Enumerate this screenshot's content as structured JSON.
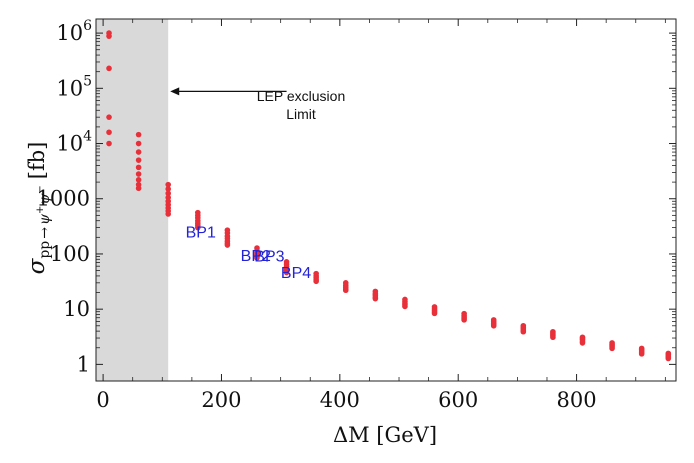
{
  "chart_data": {
    "type": "scatter",
    "title": "",
    "xlabel": "ΔM [GeV]",
    "ylabel": {
      "symbol": "σ",
      "subscript_pp": "pp",
      "subscript_arrow": "→",
      "subscript_psi1": "ψ",
      "sup_plus": "+",
      "subscript_psi2": "ψ",
      "sup_minus": "−",
      "unit": "[fb]"
    },
    "xlim": [
      -12,
      968
    ],
    "ylim": [
      0.5,
      1800000
    ],
    "yscale": "log",
    "x_ticks": [
      {
        "value": 0,
        "label": "0"
      },
      {
        "value": 200,
        "label": "200"
      },
      {
        "value": 400,
        "label": "400"
      },
      {
        "value": 600,
        "label": "600"
      },
      {
        "value": 800,
        "label": "800"
      }
    ],
    "y_ticks": [
      {
        "value": 1,
        "label": "1"
      },
      {
        "value": 10,
        "label": "10"
      },
      {
        "value": 100,
        "label": "100"
      },
      {
        "value": 1000,
        "label": "1000"
      },
      {
        "value": 10000,
        "base": "10",
        "exp": "4"
      },
      {
        "value": 100000,
        "base": "10",
        "exp": "5"
      },
      {
        "value": 1000000,
        "base": "10",
        "exp": "6"
      }
    ],
    "shaded_region": {
      "x_from": -12,
      "x_to": 110,
      "color": "#d9d9d9"
    },
    "annotation": {
      "line1": "LEP exclusion",
      "line2": "Limit",
      "arrow_from_x": 310,
      "arrow_to_x": 110,
      "arrow_y": 88000
    },
    "point_color": "#e8303a",
    "groups": [
      {
        "x": 10,
        "y": [
          1000000,
          880000,
          230000,
          30000,
          16000,
          10000
        ]
      },
      {
        "x": 60,
        "y": [
          14500,
          10000,
          7000,
          5000,
          3700,
          2800,
          2200,
          1800,
          1550
        ]
      },
      {
        "x": 110,
        "y": [
          1800,
          1500,
          1250,
          1050,
          900,
          780,
          680,
          600,
          530
        ]
      },
      {
        "x": 160,
        "y": [
          560,
          500,
          450,
          400,
          360,
          330,
          300
        ]
      },
      {
        "x": 210,
        "y": [
          270,
          240,
          210,
          190,
          170,
          155,
          145
        ]
      },
      {
        "x": 260,
        "y": [
          128,
          115,
          105,
          97,
          90,
          85
        ]
      },
      {
        "x": 310,
        "y": [
          72,
          65,
          59,
          54,
          50,
          46
        ]
      },
      {
        "x": 360,
        "y": [
          44,
          40,
          37,
          34,
          32
        ]
      },
      {
        "x": 410,
        "y": [
          30,
          27,
          25,
          23,
          22
        ]
      },
      {
        "x": 460,
        "y": [
          21,
          19,
          18,
          16.5,
          15.5
        ]
      },
      {
        "x": 510,
        "y": [
          15,
          13.8,
          12.8,
          12,
          11.2
        ]
      },
      {
        "x": 560,
        "y": [
          11,
          10.2,
          9.5,
          8.9,
          8.4
        ]
      },
      {
        "x": 610,
        "y": [
          8.3,
          7.7,
          7.2,
          6.8,
          6.4
        ]
      },
      {
        "x": 660,
        "y": [
          6.4,
          6,
          5.6,
          5.3,
          5
        ]
      },
      {
        "x": 710,
        "y": [
          5,
          4.7,
          4.4,
          4.1,
          3.9
        ]
      },
      {
        "x": 760,
        "y": [
          3.9,
          3.7,
          3.5,
          3.3,
          3.1
        ]
      },
      {
        "x": 810,
        "y": [
          3.1,
          2.95,
          2.8,
          2.6,
          2.45
        ]
      },
      {
        "x": 860,
        "y": [
          2.45,
          2.3,
          2.2,
          2.08,
          1.95
        ]
      },
      {
        "x": 910,
        "y": [
          1.95,
          1.85,
          1.75,
          1.65,
          1.55
        ]
      },
      {
        "x": 955,
        "y": [
          1.58,
          1.5,
          1.42,
          1.35,
          1.28
        ]
      }
    ],
    "benchmarks": [
      {
        "label": "BP1",
        "x": 165,
        "y": 200
      },
      {
        "label": "BP2",
        "x": 258,
        "y": 75
      },
      {
        "label": "BP3",
        "x": 281,
        "y": 73
      },
      {
        "label": "BP4",
        "x": 326,
        "y": 37
      }
    ]
  }
}
